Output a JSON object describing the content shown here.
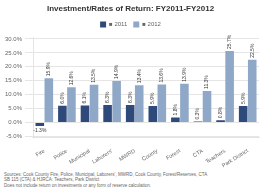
{
  "chart_data": {
    "type": "bar",
    "title": "Investment/Rates of Return: FY2011-FY2012",
    "categories": [
      "Fire",
      "Police",
      "Municipal",
      "Laborers'",
      "MWRD",
      "County",
      "Forest",
      "CTA",
      "Teachers",
      "Park District"
    ],
    "series": [
      {
        "name": "■ 2011",
        "color": "#2E4A7A",
        "values": [
          -1.3,
          6.0,
          6.1,
          6.3,
          6.3,
          5.9,
          1.8,
          0.3,
          0.8,
          5.9
        ],
        "value_labels": [
          "-1.3%",
          "6.0%",
          "6.1%",
          "6.3%",
          "6.3%",
          "5.9%",
          "1.8%",
          "0.3%",
          "0.8%",
          "5.9%"
        ]
      },
      {
        "name": "■ 2012",
        "color": "#8FA8C8",
        "values": [
          15.9,
          12.6,
          13.5,
          14.9,
          13.4,
          13.6,
          13.9,
          11.3,
          25.7,
          22.5
        ],
        "value_labels": [
          "15.9%",
          "12.6%",
          "13.5%",
          "14.9%",
          "13.4%",
          "13.6%",
          "13.9%",
          "11.3%",
          "25.7%",
          "22.5%"
        ]
      }
    ],
    "ylim": [
      -5.5,
      30.5
    ],
    "yticks": [
      {
        "value": -5.0,
        "label": "-5.0%"
      },
      {
        "value": 0.0,
        "label": "0.0%"
      },
      {
        "value": 5.0,
        "label": "5.0%"
      },
      {
        "value": 10.0,
        "label": "10.0%"
      },
      {
        "value": 15.0,
        "label": "15.0%"
      },
      {
        "value": 20.0,
        "label": "20.0%"
      },
      {
        "value": 25.0,
        "label": "25.0%"
      },
      {
        "value": 30.0,
        "label": "30.0%"
      }
    ],
    "grid": true,
    "legend": "top",
    "data_labels": true,
    "footer": "Sources: Cook County Fire, Police, Municipal, Laborers', MWRD, Cook County, Forest/Reserves, CTA\nSB 115 (CTA) & HJRCA: Teachers, Park District\nDoes not include return on investments or any form of reserve calculation."
  }
}
